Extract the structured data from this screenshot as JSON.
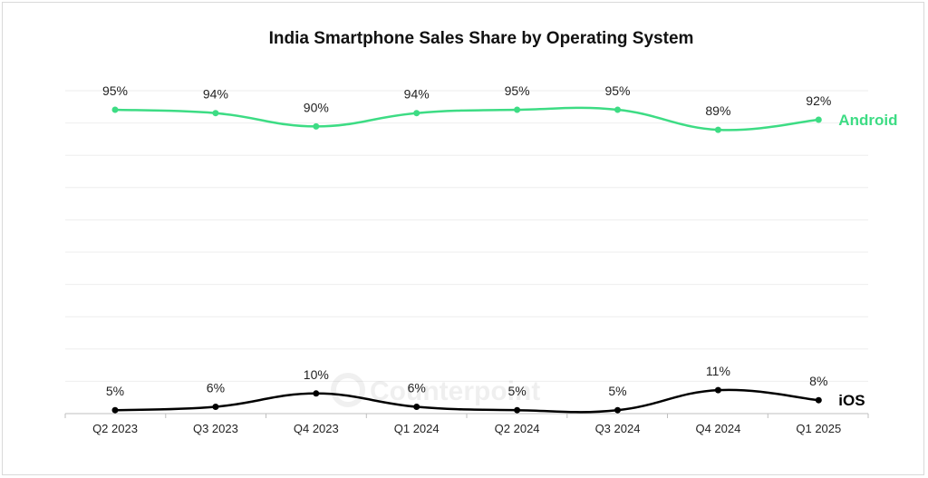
{
  "chart_data": {
    "type": "line",
    "title": "India Smartphone Sales Share by Operating System",
    "categories": [
      "Q2 2023",
      "Q3 2023",
      "Q4 2023",
      "Q1 2024",
      "Q2 2024",
      "Q3 2024",
      "Q4 2024",
      "Q1 2025"
    ],
    "series": [
      {
        "name": "Android",
        "color": "#3ddc84",
        "values": [
          95,
          94,
          90,
          94,
          95,
          95,
          89,
          92
        ],
        "labels": [
          "95%",
          "94%",
          "90%",
          "94%",
          "95%",
          "95%",
          "89%",
          "92%"
        ]
      },
      {
        "name": "iOS",
        "color": "#000000",
        "values": [
          5,
          6,
          10,
          6,
          5,
          5,
          11,
          8
        ],
        "labels": [
          "5%",
          "6%",
          "10%",
          "6%",
          "5%",
          "5%",
          "11%",
          "8%"
        ]
      }
    ],
    "ylim": [
      0,
      100
    ],
    "grid": true,
    "legend": "inline-right",
    "watermark": "Counterpoint"
  }
}
